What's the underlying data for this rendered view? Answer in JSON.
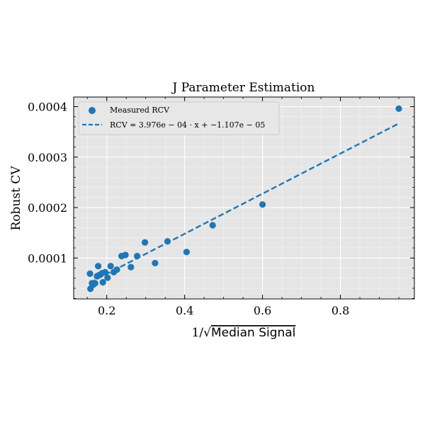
{
  "chart_data": {
    "type": "scatter",
    "title": "J Parameter Estimation",
    "xlabel_prefix": "1/√",
    "xlabel_main": "Median Signal",
    "ylabel": "Robust CV",
    "xlim": [
      0.115,
      0.99
    ],
    "ylim": [
      1.9e-05,
      0.000419
    ],
    "x_ticks": [
      0.2,
      0.4,
      0.6,
      0.8
    ],
    "x_tick_labels": [
      "0.2",
      "0.4",
      "0.6",
      "0.8"
    ],
    "y_ticks": [
      0.0001,
      0.0002,
      0.0003,
      0.0004
    ],
    "y_tick_labels": [
      "0.0001",
      "0.0002",
      "0.0003",
      "0.0004"
    ],
    "grid": true,
    "legend_position": "upper-left",
    "colors": {
      "points": "#1f77b4",
      "fit": "#1f77b4",
      "plot_bg": "#e5e5e5",
      "grid": "#ffffff"
    },
    "series": [
      {
        "name": "Measured RCV",
        "kind": "scatter",
        "x": [
          0.157,
          0.158,
          0.162,
          0.165,
          0.17,
          0.175,
          0.178,
          0.18,
          0.188,
          0.19,
          0.196,
          0.202,
          0.21,
          0.218,
          0.226,
          0.238,
          0.248,
          0.262,
          0.278,
          0.298,
          0.324,
          0.356,
          0.405,
          0.472,
          0.6,
          0.95
        ],
        "y": [
          6.9e-05,
          3.9e-05,
          5e-05,
          4.7e-05,
          5e-05,
          6.4e-05,
          8.4e-05,
          6.6e-05,
          7e-05,
          5.2e-05,
          7.2e-05,
          6.1e-05,
          8.4e-05,
          7.2e-05,
          7.7e-05,
          0.000104,
          0.000106,
          8.2e-05,
          0.000104,
          0.000131,
          9e-05,
          0.000133,
          0.000112,
          0.000165,
          0.000206,
          0.000396
        ]
      },
      {
        "name": "RCV = 3.976e − 04 · x + −1.107e − 05",
        "kind": "line",
        "slope": 0.0003976,
        "intercept": -1.107e-05,
        "x_range": [
          0.157,
          0.95
        ]
      }
    ]
  }
}
